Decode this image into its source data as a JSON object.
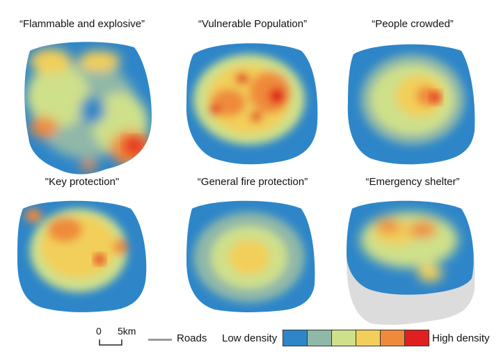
{
  "panels": [
    {
      "title": "“Flammable and explosive”"
    },
    {
      "title": "“Vulnerable Population”"
    },
    {
      "title": "“People crowded”"
    },
    {
      "title": "\"Key protection\""
    },
    {
      "title": "“General fire protection”"
    },
    {
      "title": "“Emergency shelter”"
    }
  ],
  "legend": {
    "scale_zero": "0",
    "scale_km": "5km",
    "roads_label": "Roads",
    "low_label": "Low density",
    "high_label": "High density",
    "colors": [
      "#2e86c8",
      "#8fb8a8",
      "#cfe08a",
      "#f2cf5a",
      "#ef8a3a",
      "#e0201f"
    ],
    "roads_color": "#9a9a9a"
  }
}
